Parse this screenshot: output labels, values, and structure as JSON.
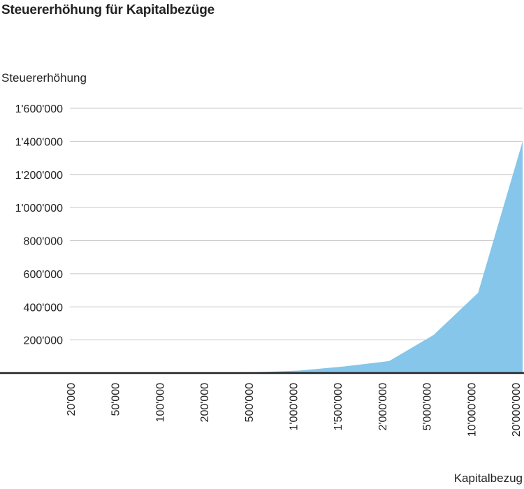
{
  "chart_data": {
    "type": "area",
    "title": "Steuererhöhung für Kapitalbezüge",
    "ylabel": "Steuererhöhung",
    "xlabel": "Kapitalbezug",
    "categories": [
      "20'000",
      "50'000",
      "100'000",
      "200'000",
      "500'000",
      "1'000'000",
      "1'500'000",
      "2'000'000",
      "5'000'000",
      "10'000'000",
      "20'000'000"
    ],
    "y_ticks": [
      "200'000",
      "400'000",
      "600'000",
      "800'000",
      "1'000'000",
      "1'200'000",
      "1'400'000",
      "1'600'000"
    ],
    "ylim": [
      0,
      1600000
    ],
    "grid": true,
    "series": [
      {
        "values": [
          0,
          0,
          200,
          1000,
          5000,
          15000,
          40000,
          72000,
          230000,
          485000,
          1400000
        ]
      }
    ],
    "colors": {
      "area": "#85c6ea",
      "grid": "#c8c8c8",
      "axis": "#222222"
    }
  }
}
